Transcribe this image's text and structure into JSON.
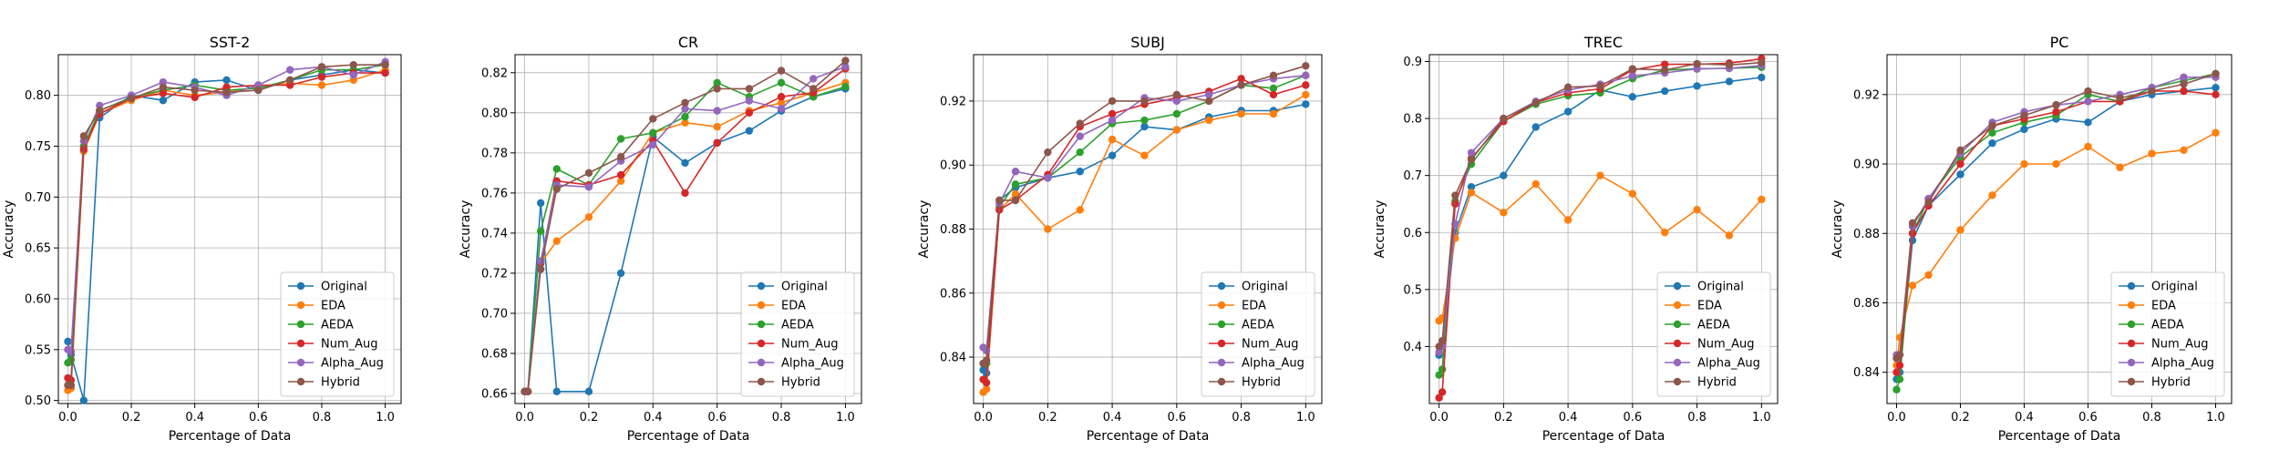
{
  "figure": {
    "palette": {
      "Original": "#1f77b4",
      "EDA": "#ff7f0e",
      "AEDA": "#2ca02c",
      "Num_Aug": "#d62728",
      "Alpha_Aug": "#9467bd",
      "Hybrid": "#8c564b"
    }
  },
  "chart_data": [
    {
      "type": "line",
      "title": "SST-2",
      "xlabel": "Percentage of Data",
      "ylabel": "Accuracy",
      "x": [
        0.0,
        0.01,
        0.05,
        0.1,
        0.2,
        0.3,
        0.4,
        0.5,
        0.6,
        0.7,
        0.8,
        0.9,
        1.0
      ],
      "xlim": [
        -0.03,
        1.05
      ],
      "ylim": [
        0.497,
        0.84
      ],
      "xticks": [
        0.0,
        0.2,
        0.4,
        0.6,
        0.8,
        1.0
      ],
      "xtick_labels": [
        "0.0",
        "0.2",
        "0.4",
        "0.6",
        "0.8",
        "1.0"
      ],
      "yticks": [
        0.5,
        0.55,
        0.6,
        0.65,
        0.7,
        0.75,
        0.8
      ],
      "ytick_labels": [
        "0.50",
        "0.55",
        "0.60",
        "0.65",
        "0.70",
        "0.75",
        "0.80"
      ],
      "grid": true,
      "legend_position": "lower right",
      "series": [
        {
          "name": "Original",
          "values": [
            0.558,
            0.545,
            0.5,
            0.778,
            0.8,
            0.795,
            0.813,
            0.815,
            0.805,
            0.815,
            0.82,
            0.825,
            0.822
          ]
        },
        {
          "name": "EDA",
          "values": [
            0.51,
            0.512,
            0.745,
            0.782,
            0.795,
            0.805,
            0.8,
            0.803,
            0.808,
            0.812,
            0.81,
            0.815,
            0.825
          ]
        },
        {
          "name": "AEDA",
          "values": [
            0.537,
            0.54,
            0.75,
            0.785,
            0.798,
            0.805,
            0.81,
            0.805,
            0.807,
            0.815,
            0.825,
            0.825,
            0.83
          ]
        },
        {
          "name": "Num_Aug",
          "values": [
            0.522,
            0.52,
            0.747,
            0.782,
            0.797,
            0.802,
            0.798,
            0.808,
            0.81,
            0.81,
            0.818,
            0.822,
            0.822
          ]
        },
        {
          "name": "Alpha_Aug",
          "values": [
            0.55,
            0.548,
            0.755,
            0.79,
            0.8,
            0.813,
            0.808,
            0.8,
            0.81,
            0.825,
            0.828,
            0.82,
            0.833
          ]
        },
        {
          "name": "Hybrid",
          "values": [
            0.515,
            0.515,
            0.76,
            0.785,
            0.797,
            0.808,
            0.805,
            0.803,
            0.805,
            0.815,
            0.828,
            0.83,
            0.83
          ]
        }
      ]
    },
    {
      "type": "line",
      "title": "CR",
      "xlabel": "Percentage of Data",
      "ylabel": "Accuracy",
      "x": [
        0.0,
        0.01,
        0.05,
        0.1,
        0.2,
        0.3,
        0.4,
        0.5,
        0.6,
        0.7,
        0.8,
        0.9,
        1.0
      ],
      "xlim": [
        -0.03,
        1.05
      ],
      "ylim": [
        0.655,
        0.829
      ],
      "xticks": [
        0.0,
        0.2,
        0.4,
        0.6,
        0.8,
        1.0
      ],
      "xtick_labels": [
        "0.0",
        "0.2",
        "0.4",
        "0.6",
        "0.8",
        "1.0"
      ],
      "yticks": [
        0.66,
        0.68,
        0.7,
        0.72,
        0.74,
        0.76,
        0.78,
        0.8,
        0.82
      ],
      "ytick_labels": [
        "0.66",
        "0.68",
        "0.70",
        "0.72",
        "0.74",
        "0.76",
        "0.78",
        "0.80",
        "0.82"
      ],
      "grid": true,
      "legend_position": "lower right",
      "series": [
        {
          "name": "Original",
          "values": [
            0.661,
            0.661,
            0.755,
            0.661,
            0.661,
            0.72,
            0.788,
            0.775,
            0.785,
            0.791,
            0.801,
            0.808,
            0.812
          ]
        },
        {
          "name": "EDA",
          "values": [
            0.661,
            0.661,
            0.725,
            0.736,
            0.748,
            0.766,
            0.79,
            0.795,
            0.793,
            0.801,
            0.805,
            0.81,
            0.815
          ]
        },
        {
          "name": "AEDA",
          "values": [
            0.661,
            0.661,
            0.741,
            0.772,
            0.764,
            0.787,
            0.79,
            0.798,
            0.815,
            0.808,
            0.815,
            0.808,
            0.813
          ]
        },
        {
          "name": "Num_Aug",
          "values": [
            0.661,
            0.661,
            0.725,
            0.766,
            0.764,
            0.769,
            0.786,
            0.76,
            0.785,
            0.8,
            0.808,
            0.81,
            0.822
          ]
        },
        {
          "name": "Alpha_Aug",
          "values": [
            0.661,
            0.661,
            0.726,
            0.764,
            0.763,
            0.776,
            0.784,
            0.802,
            0.801,
            0.806,
            0.802,
            0.817,
            0.823
          ]
        },
        {
          "name": "Hybrid",
          "values": [
            0.661,
            0.661,
            0.722,
            0.762,
            0.77,
            0.778,
            0.797,
            0.805,
            0.812,
            0.812,
            0.821,
            0.812,
            0.826
          ]
        }
      ]
    },
    {
      "type": "line",
      "title": "SUBJ",
      "xlabel": "Percentage of Data",
      "ylabel": "Accuracy",
      "x": [
        0.0,
        0.01,
        0.05,
        0.1,
        0.2,
        0.3,
        0.4,
        0.5,
        0.6,
        0.7,
        0.8,
        0.9,
        1.0
      ],
      "xlim": [
        -0.03,
        1.05
      ],
      "ylim": [
        0.8255,
        0.9345
      ],
      "xticks": [
        0.0,
        0.2,
        0.4,
        0.6,
        0.8,
        1.0
      ],
      "xtick_labels": [
        "0.0",
        "0.2",
        "0.4",
        "0.6",
        "0.8",
        "1.0"
      ],
      "yticks": [
        0.84,
        0.86,
        0.88,
        0.9,
        0.92
      ],
      "ytick_labels": [
        "0.84",
        "0.86",
        "0.88",
        "0.90",
        "0.92"
      ],
      "grid": true,
      "legend_position": "lower right",
      "series": [
        {
          "name": "Original",
          "values": [
            0.836,
            0.835,
            0.889,
            0.893,
            0.896,
            0.898,
            0.903,
            0.912,
            0.911,
            0.915,
            0.917,
            0.917,
            0.919
          ]
        },
        {
          "name": "EDA",
          "values": [
            0.829,
            0.83,
            0.886,
            0.891,
            0.88,
            0.886,
            0.908,
            0.903,
            0.911,
            0.914,
            0.916,
            0.916,
            0.922
          ]
        },
        {
          "name": "AEDA",
          "values": [
            0.838,
            0.838,
            0.887,
            0.894,
            0.896,
            0.904,
            0.913,
            0.914,
            0.916,
            0.92,
            0.925,
            0.924,
            0.928
          ]
        },
        {
          "name": "Num_Aug",
          "values": [
            0.833,
            0.832,
            0.886,
            0.889,
            0.897,
            0.912,
            0.916,
            0.919,
            0.921,
            0.923,
            0.927,
            0.922,
            0.925
          ]
        },
        {
          "name": "Alpha_Aug",
          "values": [
            0.843,
            0.842,
            0.888,
            0.898,
            0.896,
            0.909,
            0.914,
            0.921,
            0.92,
            0.922,
            0.925,
            0.927,
            0.928
          ]
        },
        {
          "name": "Hybrid",
          "values": [
            0.838,
            0.839,
            0.889,
            0.889,
            0.904,
            0.913,
            0.92,
            0.92,
            0.922,
            0.92,
            0.925,
            0.928,
            0.931
          ]
        }
      ]
    },
    {
      "type": "line",
      "title": "TREC",
      "xlabel": "Percentage of Data",
      "ylabel": "Accuracy",
      "x": [
        0.0,
        0.01,
        0.05,
        0.1,
        0.2,
        0.3,
        0.4,
        0.5,
        0.6,
        0.7,
        0.8,
        0.9,
        1.0
      ],
      "xlim": [
        -0.03,
        1.05
      ],
      "ylim": [
        0.3,
        0.912
      ],
      "xticks": [
        0.0,
        0.2,
        0.4,
        0.6,
        0.8,
        1.0
      ],
      "xtick_labels": [
        "0.0",
        "0.2",
        "0.4",
        "0.6",
        "0.8",
        "1.0"
      ],
      "yticks": [
        0.4,
        0.5,
        0.6,
        0.7,
        0.8,
        0.9
      ],
      "ytick_labels": [
        "0.4",
        "0.5",
        "0.6",
        "0.7",
        "0.8",
        "0.9"
      ],
      "grid": true,
      "legend_position": "lower right",
      "series": [
        {
          "name": "Original",
          "values": [
            0.385,
            0.4,
            0.6,
            0.68,
            0.7,
            0.785,
            0.812,
            0.85,
            0.838,
            0.848,
            0.857,
            0.865,
            0.872
          ]
        },
        {
          "name": "EDA",
          "values": [
            0.445,
            0.45,
            0.59,
            0.67,
            0.635,
            0.685,
            0.622,
            0.7,
            0.668,
            0.6,
            0.64,
            0.595,
            0.658
          ]
        },
        {
          "name": "AEDA",
          "values": [
            0.35,
            0.36,
            0.655,
            0.72,
            0.795,
            0.825,
            0.84,
            0.845,
            0.87,
            0.885,
            0.887,
            0.888,
            0.89
          ]
        },
        {
          "name": "Num_Aug",
          "values": [
            0.31,
            0.32,
            0.65,
            0.73,
            0.795,
            0.828,
            0.845,
            0.852,
            0.885,
            0.895,
            0.895,
            0.897,
            0.905
          ]
        },
        {
          "name": "Alpha_Aug",
          "values": [
            0.39,
            0.4,
            0.615,
            0.74,
            0.8,
            0.83,
            0.85,
            0.86,
            0.875,
            0.88,
            0.887,
            0.888,
            0.893
          ]
        },
        {
          "name": "Hybrid",
          "values": [
            0.4,
            0.41,
            0.665,
            0.728,
            0.8,
            0.828,
            0.855,
            0.857,
            0.887,
            0.885,
            0.896,
            0.894,
            0.898
          ]
        }
      ]
    },
    {
      "type": "line",
      "title": "PC",
      "xlabel": "Percentage of Data",
      "ylabel": "Accuracy",
      "x": [
        0.0,
        0.01,
        0.05,
        0.1,
        0.2,
        0.3,
        0.4,
        0.5,
        0.6,
        0.7,
        0.8,
        0.9,
        1.0
      ],
      "xlim": [
        -0.03,
        1.05
      ],
      "ylim": [
        0.831,
        0.9315
      ],
      "xticks": [
        0.0,
        0.2,
        0.4,
        0.6,
        0.8,
        1.0
      ],
      "xtick_labels": [
        "0.0",
        "0.2",
        "0.4",
        "0.6",
        "0.8",
        "1.0"
      ],
      "yticks": [
        0.84,
        0.86,
        0.88,
        0.9,
        0.92
      ],
      "ytick_labels": [
        "0.84",
        "0.86",
        "0.88",
        "0.90",
        "0.92"
      ],
      "grid": true,
      "legend_position": "lower right",
      "series": [
        {
          "name": "Original",
          "values": [
            0.838,
            0.84,
            0.878,
            0.888,
            0.897,
            0.906,
            0.91,
            0.913,
            0.912,
            0.918,
            0.92,
            0.921,
            0.922
          ]
        },
        {
          "name": "EDA",
          "values": [
            0.842,
            0.85,
            0.865,
            0.868,
            0.881,
            0.891,
            0.9,
            0.9,
            0.905,
            0.899,
            0.903,
            0.904,
            0.909
          ]
        },
        {
          "name": "AEDA",
          "values": [
            0.835,
            0.838,
            0.88,
            0.89,
            0.902,
            0.909,
            0.912,
            0.914,
            0.92,
            0.918,
            0.922,
            0.924,
            0.926
          ]
        },
        {
          "name": "Num_Aug",
          "values": [
            0.84,
            0.842,
            0.88,
            0.888,
            0.9,
            0.911,
            0.913,
            0.915,
            0.918,
            0.918,
            0.921,
            0.921,
            0.92
          ]
        },
        {
          "name": "Alpha_Aug",
          "values": [
            0.845,
            0.845,
            0.882,
            0.89,
            0.903,
            0.912,
            0.915,
            0.917,
            0.918,
            0.92,
            0.922,
            0.925,
            0.925
          ]
        },
        {
          "name": "Hybrid",
          "values": [
            0.844,
            0.845,
            0.883,
            0.889,
            0.904,
            0.911,
            0.914,
            0.917,
            0.921,
            0.919,
            0.921,
            0.923,
            0.926
          ]
        }
      ]
    }
  ]
}
